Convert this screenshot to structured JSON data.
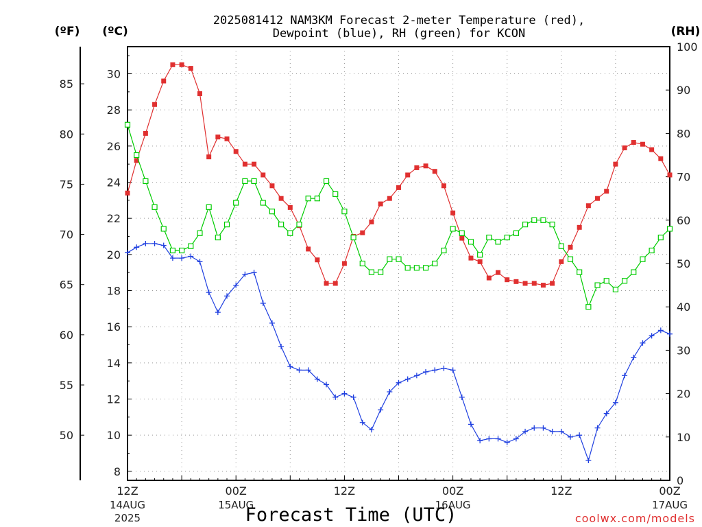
{
  "chart_data": {
    "type": "line",
    "title_line1": "2025081412 NAM3KM Forecast 2-meter Temperature (red),",
    "title_line2": "Dewpoint (blue), RH (green) for KCON",
    "xlabel": "Forecast Time (UTC)",
    "watermark": "coolwx.com/models",
    "units": {
      "fahrenheit": "(ºF)",
      "celsius": "(ºC)",
      "rh": "(RH)"
    },
    "x_range_hours": [
      0,
      60
    ],
    "y_range_celsius": [
      7.5,
      31.5
    ],
    "y_range_rh": [
      0,
      100
    ],
    "x_ticks": [
      {
        "hour": 0,
        "time": "12Z",
        "date": "14AUG",
        "year": "2025"
      },
      {
        "hour": 12,
        "time": "00Z",
        "date": "15AUG",
        "year": ""
      },
      {
        "hour": 24,
        "time": "12Z",
        "date": "",
        "year": ""
      },
      {
        "hour": 36,
        "time": "00Z",
        "date": "16AUG",
        "year": ""
      },
      {
        "hour": 48,
        "time": "12Z",
        "date": "",
        "year": ""
      },
      {
        "hour": 60,
        "time": "00Z",
        "date": "17AUG",
        "year": ""
      }
    ],
    "y_ticks_celsius": [
      "8",
      "10",
      "12",
      "14",
      "16",
      "18",
      "20",
      "22",
      "24",
      "26",
      "28",
      "30"
    ],
    "y_ticks_fahrenheit": [
      "50",
      "55",
      "60",
      "65",
      "70",
      "75",
      "80",
      "85"
    ],
    "y_ticks_rh": [
      "0",
      "10",
      "20",
      "30",
      "40",
      "50",
      "60",
      "70",
      "80",
      "90",
      "100"
    ],
    "grid": true,
    "colors": {
      "temperature": "#e03030",
      "dewpoint": "#2040e0",
      "rh": "#00cc00",
      "grid": "#999999"
    },
    "series": [
      {
        "name": "Temperature",
        "unit": "C",
        "marker": "filled-square",
        "values": [
          23.4,
          25.2,
          26.7,
          28.3,
          29.6,
          30.5,
          30.5,
          30.3,
          28.9,
          25.4,
          26.5,
          26.4,
          25.7,
          25.0,
          25.0,
          24.4,
          23.8,
          23.1,
          22.6,
          21.6,
          20.3,
          19.7,
          18.4,
          18.4,
          19.5,
          21.0,
          21.2,
          21.8,
          22.8,
          23.1,
          23.7,
          24.4,
          24.8,
          24.9,
          24.6,
          23.8,
          22.3,
          20.9,
          19.8,
          19.6,
          18.7,
          19.0,
          18.6,
          18.5,
          18.4,
          18.4,
          18.3,
          18.4,
          19.6,
          20.4,
          21.5,
          22.7,
          23.1,
          23.5,
          25.0,
          25.9,
          26.2,
          26.1,
          25.8,
          25.3,
          24.4
        ]
      },
      {
        "name": "Dewpoint",
        "unit": "C",
        "marker": "plus",
        "values": [
          20.1,
          20.4,
          20.6,
          20.6,
          20.5,
          19.8,
          19.8,
          19.9,
          19.6,
          17.9,
          16.8,
          17.7,
          18.3,
          18.9,
          19.0,
          17.3,
          16.2,
          14.9,
          13.8,
          13.6,
          13.6,
          13.1,
          12.8,
          12.1,
          12.3,
          12.1,
          10.7,
          10.3,
          11.4,
          12.4,
          12.9,
          13.1,
          13.3,
          13.5,
          13.6,
          13.7,
          13.6,
          12.1,
          10.6,
          9.7,
          9.8,
          9.8,
          9.6,
          9.8,
          10.2,
          10.4,
          10.4,
          10.2,
          10.2,
          9.9,
          10.0,
          8.6,
          10.4,
          11.2,
          11.8,
          13.3,
          14.3,
          15.1,
          15.5,
          15.8,
          15.6
        ]
      },
      {
        "name": "RH",
        "unit": "%",
        "marker": "open-square",
        "values": [
          82,
          75,
          69,
          63,
          58,
          53,
          53,
          54,
          57,
          63,
          56,
          59,
          64,
          69,
          69,
          64,
          62,
          59,
          57,
          59,
          65,
          65,
          69,
          66,
          62,
          56,
          50,
          48,
          48,
          51,
          51,
          49,
          49,
          49,
          50,
          53,
          58,
          57,
          55,
          52,
          56,
          55,
          56,
          57,
          59,
          60,
          60,
          59,
          54,
          51,
          48,
          40,
          45,
          46,
          44,
          46,
          48,
          51,
          53,
          56,
          58
        ]
      }
    ]
  }
}
